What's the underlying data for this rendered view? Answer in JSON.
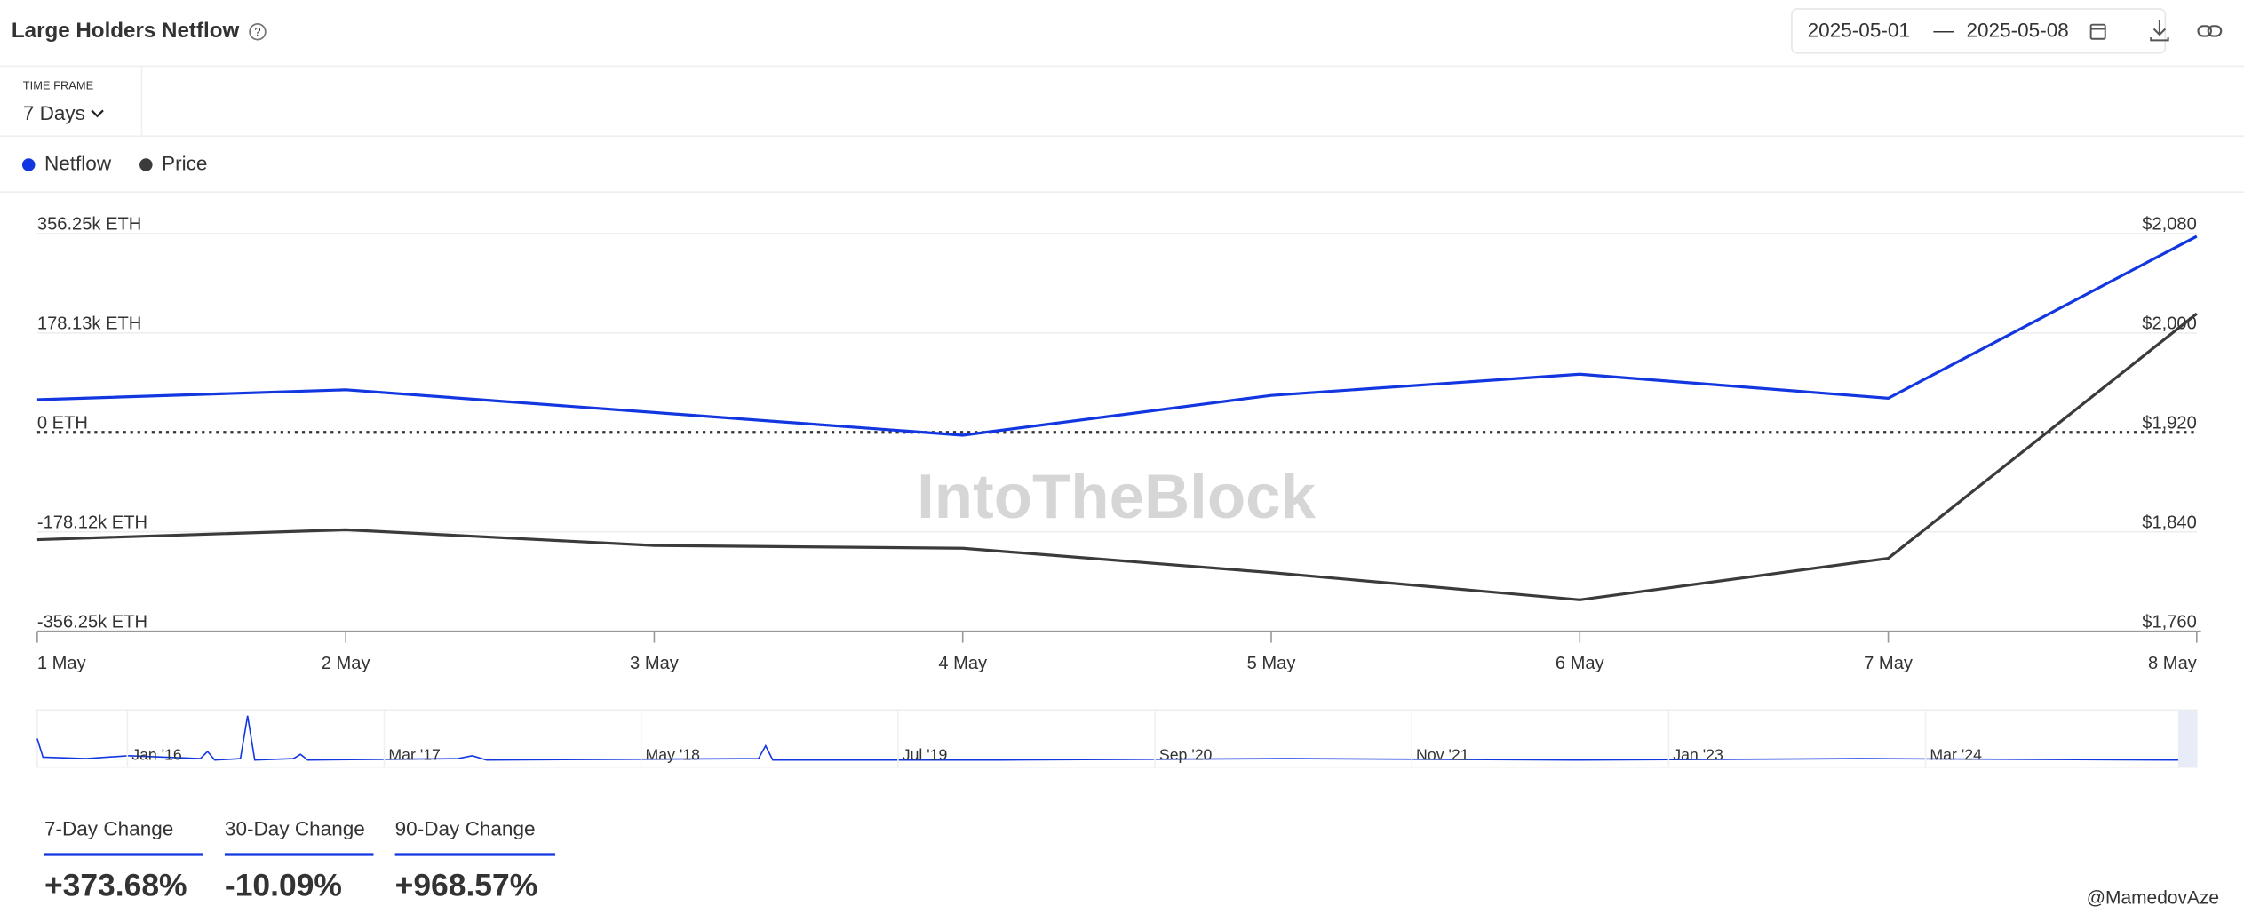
{
  "header": {
    "title": "Large Holders Netflow",
    "date_from": "2025-05-01",
    "date_separator": "—",
    "date_to": "2025-05-08",
    "time_frame_label": "TIME FRAME",
    "time_frame_value": "7 Days"
  },
  "chart_data": {
    "type": "line",
    "categories": [
      "1 May",
      "2 May",
      "3 May",
      "4 May",
      "5 May",
      "6 May",
      "7 May",
      "8 May"
    ],
    "series": [
      {
        "name": "Netflow",
        "color": "#1237e0",
        "values": [
          58500,
          76300,
          35600,
          -5100,
          66200,
          104300,
          61100,
          351200
        ]
      },
      {
        "name": "Price",
        "color": "#3b3b3b",
        "axis": "y2",
        "values": [
          1833.7,
          1841.7,
          1829.0,
          1826.8,
          1807.2,
          1785.3,
          1818.7,
          2015.5
        ]
      }
    ],
    "ylim": [
      -356250,
      356250
    ],
    "yticks": [
      {
        "value": 356250,
        "label": "356.25k ETH"
      },
      {
        "value": 178130,
        "label": "178.13k ETH"
      },
      {
        "value": 0,
        "label": "0 ETH"
      },
      {
        "value": -178120,
        "label": "-178.12k ETH"
      },
      {
        "value": -356250,
        "label": "-356.25k ETH"
      }
    ],
    "y2lim": [
      1760,
      2080
    ],
    "y2ticks": [
      {
        "value": 2080,
        "label": "$2,080"
      },
      {
        "value": 2000,
        "label": "$2,000"
      },
      {
        "value": 1920,
        "label": "$1,920"
      },
      {
        "value": 1840,
        "label": "$1,840"
      },
      {
        "value": 1760,
        "label": "$1,760"
      }
    ],
    "grid": true,
    "watermark": "IntoTheBlock",
    "navigator_labels": [
      "Jan '16",
      "Mar '17",
      "May '18",
      "Jul '19",
      "Sep '20",
      "Nov '21",
      "Jan '23",
      "Mar '24"
    ]
  },
  "stats": [
    {
      "label": "7-Day Change",
      "value": "+373.68%"
    },
    {
      "label": "30-Day Change",
      "value": "-10.09%"
    },
    {
      "label": "90-Day Change",
      "value": "+968.57%"
    }
  ],
  "credit": "@MamedovAze"
}
